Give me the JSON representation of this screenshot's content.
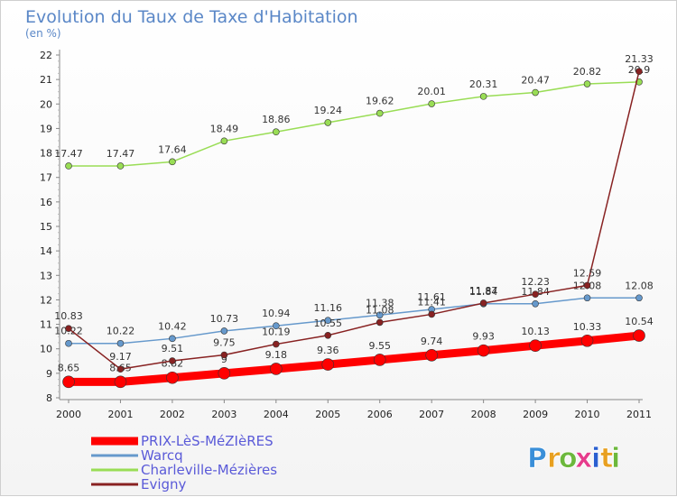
{
  "chart_data": {
    "type": "line",
    "title": "Evolution du Taux de Taxe d'Habitation",
    "subtitle": "(en %)",
    "x": [
      "2000",
      "2001",
      "2002",
      "2003",
      "2004",
      "2005",
      "2006",
      "2007",
      "2008",
      "2009",
      "2010",
      "2011"
    ],
    "yticks": [
      "8",
      "9",
      "10",
      "11",
      "12",
      "13",
      "14",
      "15",
      "16",
      "17",
      "18",
      "19",
      "20",
      "21",
      "22"
    ],
    "ylim": [
      8,
      22
    ],
    "grid": false,
    "legend_position": "bottom-left",
    "series": [
      {
        "name": "PRIX-LèS-MéZIèRES",
        "color": "#ff0000",
        "values": [
          8.65,
          8.65,
          8.82,
          9,
          9.18,
          9.36,
          9.55,
          9.74,
          9.93,
          10.13,
          10.33,
          10.54
        ],
        "labels": [
          "8.65",
          "8.65",
          "8.82",
          "9",
          "9.18",
          "9.36",
          "9.55",
          "9.74",
          "9.93",
          "10.13",
          "10.33",
          "10.54"
        ]
      },
      {
        "name": "Warcq",
        "color": "#6699cc",
        "values": [
          10.22,
          10.22,
          10.42,
          10.73,
          10.94,
          11.16,
          11.38,
          11.61,
          11.84,
          11.84,
          12.08,
          12.08
        ],
        "labels": [
          "10.22",
          "10.22",
          "10.42",
          "10.73",
          "10.94",
          "11.16",
          "11.38",
          "11.61",
          "11.84",
          "11.84",
          "12.08",
          "12.08"
        ]
      },
      {
        "name": "Charleville-Mézières",
        "color": "#99dd55",
        "values": [
          17.47,
          17.47,
          17.64,
          18.49,
          18.86,
          19.24,
          19.62,
          20.01,
          20.31,
          20.47,
          20.82,
          20.9
        ],
        "labels": [
          "17.47",
          "17.47",
          "17.64",
          "18.49",
          "18.86",
          "19.24",
          "19.62",
          "20.01",
          "20.31",
          "20.47",
          "20.82",
          "20.9"
        ]
      },
      {
        "name": "Evigny",
        "color": "#882222",
        "values": [
          10.83,
          9.17,
          9.51,
          9.75,
          10.19,
          10.55,
          11.08,
          11.41,
          11.87,
          12.23,
          12.59,
          21.33
        ],
        "labels": [
          "10.83",
          "9.17",
          "9.51",
          "9.75",
          "10.19",
          "10.55",
          "11.08",
          "11.41",
          "11.87",
          "12.23",
          "12.59",
          "21.33"
        ]
      }
    ]
  },
  "brand": {
    "letters": [
      "P",
      "r",
      "o",
      "x",
      "i",
      "t",
      "i"
    ],
    "colors": [
      "#3a8fd8",
      "#e8a020",
      "#6cb83c",
      "#e63c8c",
      "#2a5fd0",
      "#e8a020",
      "#6cb83c"
    ]
  }
}
